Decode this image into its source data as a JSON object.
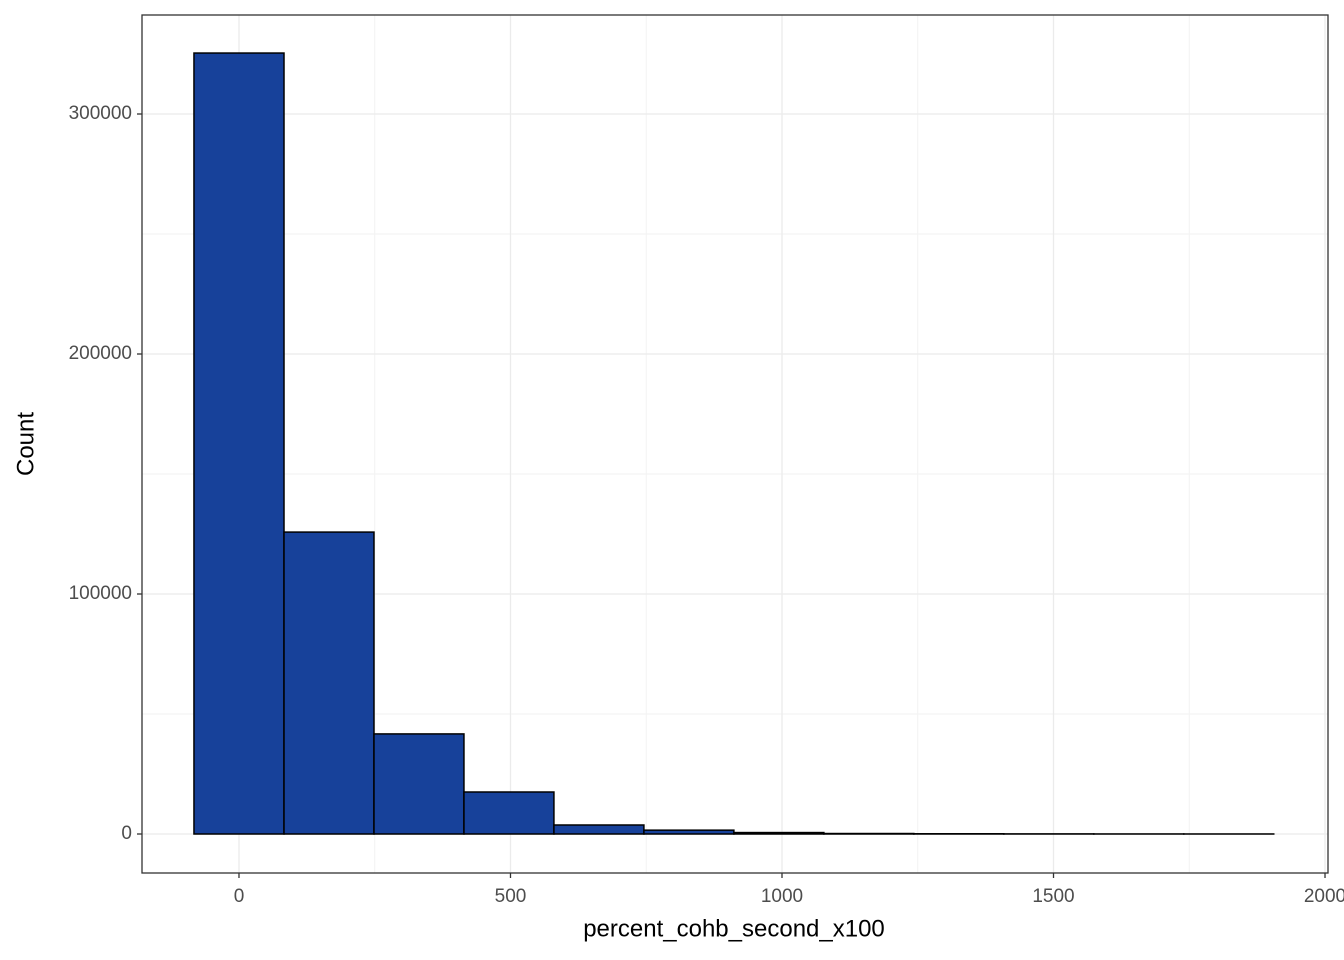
{
  "chart_data": {
    "type": "histogram",
    "x_label": "percent_cohb_second_x100",
    "y_label": "Count",
    "bins": [
      -82.9,
      82.9,
      248.6,
      414.3,
      580.0,
      745.7,
      911.4,
      1077.1,
      1242.8,
      1408.5,
      1574.2,
      1739.9,
      1905.6
    ],
    "values": [
      325400,
      125800,
      41700,
      17500,
      3750,
      1600,
      600,
      200,
      100,
      50,
      20,
      10
    ],
    "color": "#17419a",
    "xlim": [
      -178.6,
      2005.5
    ],
    "xticks": [
      0,
      500,
      1000,
      1500,
      2000
    ],
    "ylim": [
      -16250,
      341250
    ],
    "yticks": [
      0,
      100000,
      200000,
      300000
    ],
    "grid": true
  }
}
